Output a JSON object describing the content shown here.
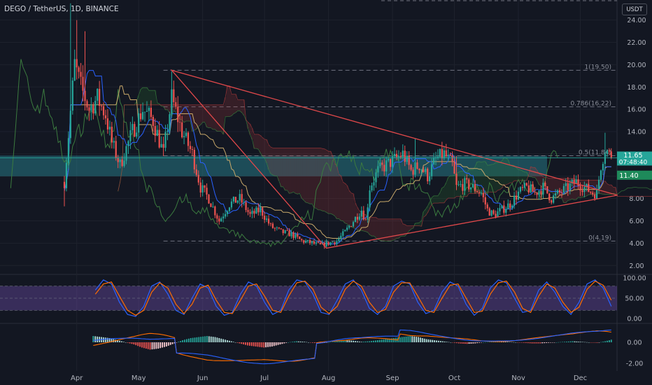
{
  "header": {
    "title": "DEGO / TetherUS, 1D, BINANCE",
    "currency": "USDT"
  },
  "colors": {
    "background": "#131722",
    "grid": "#1e222d",
    "axis_text": "#b2b5be",
    "up": "#26a69a",
    "down": "#ef5350",
    "triangle": "#e0484a",
    "zone": "#2a8f9c",
    "fib": "#707380",
    "price_line": "#26a69a",
    "stoch_k": "#2962ff",
    "stoch_d": "#ff6d00",
    "stoch_band": "#7e57c2",
    "macd_line": "#2962ff",
    "signal_line": "#ff6d00",
    "ichi_lag": "#3b7a3f",
    "ichi_conv": "#2962ff",
    "ichi_base": "#c8a86a"
  },
  "price_labels": {
    "last": "11.65",
    "countdown": "07:48:40",
    "zone": "11.40"
  },
  "chart_data": [
    {
      "type": "candlestick",
      "pane": "price",
      "title": "DEGO / TetherUS, 1D, BINANCE",
      "y_ticks": [
        "24.00",
        "22.00",
        "20.00",
        "18.00",
        "16.00",
        "14.00",
        "12.00",
        "10.00",
        "8.00",
        "6.00",
        "4.00",
        "2.00"
      ],
      "y_range": [
        1.2,
        25.8
      ],
      "x_months": [
        "Apr",
        "May",
        "Jun",
        "Jul",
        "Aug",
        "Sep",
        "Oct",
        "Nov",
        "Dec"
      ],
      "fib_levels": [
        {
          "label": "1(19.50)",
          "value": 19.5
        },
        {
          "label": "0.786(16.22)",
          "value": 16.22
        },
        {
          "label": "0.5(11.84)",
          "value": 11.84
        },
        {
          "label": "0(4.19)",
          "value": 4.19
        }
      ],
      "zone": [
        10.0,
        11.85
      ],
      "triangle": [
        {
          "d": 52,
          "v": 19.5
        },
        {
          "d": 127,
          "v": 3.55
        },
        {
          "d": 268,
          "v": 8.3
        }
      ],
      "last_price": 11.65,
      "price_anchors": [
        [
          0,
          9.5
        ],
        [
          5,
          20
        ],
        [
          8,
          18
        ],
        [
          12,
          16
        ],
        [
          16,
          17
        ],
        [
          20,
          15.5
        ],
        [
          23,
          13
        ],
        [
          27,
          11
        ],
        [
          33,
          14
        ],
        [
          38,
          16
        ],
        [
          43,
          15
        ],
        [
          48,
          12
        ],
        [
          52,
          17
        ],
        [
          57,
          14
        ],
        [
          62,
          12
        ],
        [
          66,
          9
        ],
        [
          70,
          8
        ],
        [
          75,
          6
        ],
        [
          80,
          7.5
        ],
        [
          85,
          8
        ],
        [
          90,
          6.5
        ],
        [
          95,
          7
        ],
        [
          100,
          5.5
        ],
        [
          105,
          5
        ],
        [
          110,
          4.8
        ],
        [
          115,
          4.2
        ],
        [
          120,
          4
        ],
        [
          124,
          3.8
        ],
        [
          128,
          4
        ],
        [
          132,
          4.2
        ],
        [
          136,
          5
        ],
        [
          140,
          6
        ],
        [
          144,
          7
        ],
        [
          146,
          6
        ],
        [
          148,
          9
        ],
        [
          152,
          10.5
        ],
        [
          156,
          11
        ],
        [
          160,
          11.5
        ],
        [
          164,
          12
        ],
        [
          168,
          10.5
        ],
        [
          172,
          11
        ],
        [
          176,
          10
        ],
        [
          180,
          11.5
        ],
        [
          184,
          12
        ],
        [
          188,
          11
        ],
        [
          190,
          9
        ],
        [
          194,
          9.3
        ],
        [
          198,
          9
        ],
        [
          202,
          8.5
        ],
        [
          205,
          7
        ],
        [
          208,
          6.5
        ],
        [
          212,
          7
        ],
        [
          216,
          7.5
        ],
        [
          220,
          8.5
        ],
        [
          224,
          9
        ],
        [
          228,
          8.5
        ],
        [
          232,
          9
        ],
        [
          236,
          8
        ],
        [
          240,
          8.5
        ],
        [
          244,
          9
        ],
        [
          248,
          9.5
        ],
        [
          252,
          9
        ],
        [
          256,
          8.5
        ],
        [
          258,
          8.5
        ],
        [
          260,
          11
        ],
        [
          262,
          12.5
        ],
        [
          265,
          11.65
        ]
      ]
    },
    {
      "type": "line",
      "pane": "stochastic_rsi",
      "y_ticks": [
        "100.00",
        "50.00",
        "0.00"
      ],
      "y_range": [
        0,
        100
      ],
      "band": [
        20,
        80
      ],
      "series": [
        {
          "name": "",
          "values": [
            70,
            95,
            85,
            40,
            10,
            5,
            30,
            80,
            90,
            60,
            20,
            10,
            50,
            85,
            75,
            30,
            8,
            15,
            60,
            90,
            80,
            40,
            10,
            20,
            70,
            95,
            90,
            60,
            15,
            10,
            45,
            85,
            95,
            70,
            25,
            10,
            30,
            80,
            92,
            85,
            40,
            12,
            20,
            65,
            90,
            80,
            35,
            8,
            25,
            75,
            95,
            88,
            50,
            15,
            20,
            70,
            90,
            65,
            30,
            10,
            40,
            85,
            95,
            75,
            30
          ]
        },
        {
          "name": "",
          "values": [
            60,
            85,
            90,
            55,
            20,
            8,
            20,
            65,
            88,
            75,
            35,
            12,
            35,
            75,
            82,
            45,
            15,
            12,
            45,
            80,
            85,
            55,
            20,
            15,
            55,
            88,
            92,
            72,
            28,
            12,
            30,
            72,
            92,
            80,
            40,
            15,
            22,
            65,
            88,
            88,
            55,
            20,
            15,
            50,
            82,
            85,
            50,
            15,
            18,
            60,
            88,
            92,
            65,
            25,
            15,
            55,
            85,
            75,
            40,
            15,
            28,
            72,
            92,
            82,
            45
          ]
        }
      ]
    },
    {
      "type": "bar",
      "pane": "macd",
      "y_ticks": [
        "0.00",
        "-2.00"
      ],
      "y_range": [
        -2.4,
        1.3
      ],
      "series": [
        {
          "name": "",
          "values": [
            0.6,
            0.5,
            0.4,
            0.2,
            0,
            -0.2,
            -0.5,
            -0.7,
            -0.6,
            -0.4,
            -0.1,
            0.2,
            0.4,
            0.5,
            0.6,
            0.5,
            0.3,
            0.1,
            -0.1,
            -0.3,
            -0.4,
            -0.5,
            -0.4,
            -0.2,
            0,
            0.1,
            0.05,
            -0.05,
            -0.1,
            0,
            0.1,
            0.2,
            0.15,
            0.05,
            0.1,
            0.2,
            0.3,
            0.4,
            0.5,
            0.6,
            0.5,
            0.3,
            0.2,
            0.1,
            0,
            -0.1,
            -0.15,
            -0.1,
            0,
            0.05,
            0.1,
            0.05,
            0,
            -0.05,
            -0.1,
            -0.1,
            -0.05,
            0,
            0.05,
            0.1,
            0.05,
            0,
            -0.05,
            0.1,
            0.3
          ]
        }
      ]
    }
  ]
}
